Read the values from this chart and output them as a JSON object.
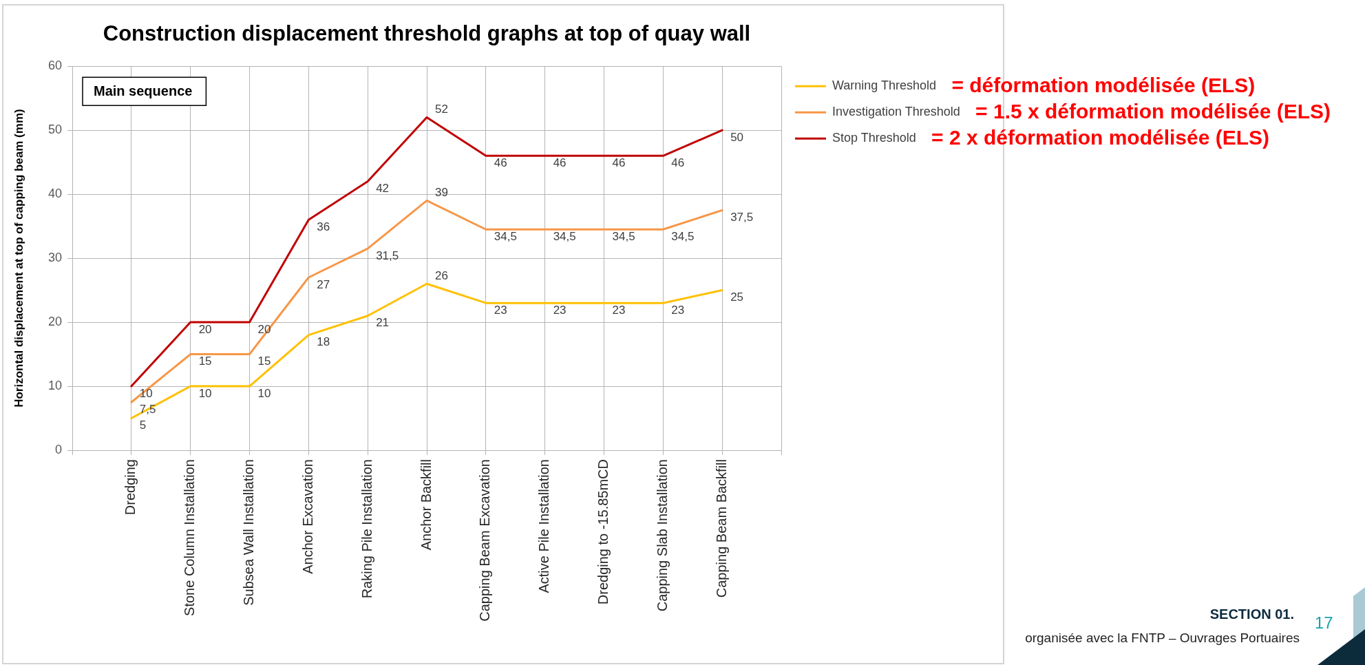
{
  "chart_data": {
    "type": "line",
    "title": "Construction displacement threshold graphs at top of quay wall",
    "ylabel": "Horizontal displacement at top of capping beam (mm)",
    "categories": [
      "Dredging",
      "Stone Column Installation",
      "Subsea Wall Installation",
      "Anchor Excavation",
      "Raking Pile Installation",
      "Anchor Backfill",
      "Capping Beam Excavation",
      "Active Pile Installation",
      "Dredging to -15.85mCD",
      "Capping Slab Installation",
      "Capping Beam Backfill"
    ],
    "series": [
      {
        "name": "Warning Threshold",
        "color": "#ffc000",
        "values": [
          5,
          10,
          10,
          18,
          21,
          26,
          23,
          23,
          23,
          23,
          25
        ],
        "value_labels": [
          "5",
          "10",
          "10",
          "18",
          "21",
          "26",
          "23",
          "23",
          "23",
          "23",
          "25"
        ]
      },
      {
        "name": "Investigation Threshold",
        "color": "#f79646",
        "values": [
          7.5,
          15,
          15,
          27,
          31.5,
          39,
          34.5,
          34.5,
          34.5,
          34.5,
          37.5
        ],
        "value_labels": [
          "7,5",
          "15",
          "15",
          "27",
          "31,5",
          "39",
          "34,5",
          "34,5",
          "34,5",
          "34,5",
          "37,5"
        ]
      },
      {
        "name": "Stop Threshold",
        "color": "#c00000",
        "values": [
          10,
          20,
          20,
          36,
          42,
          52,
          46,
          46,
          46,
          46,
          50
        ],
        "value_labels": [
          "10",
          "20",
          "20",
          "36",
          "42",
          "52",
          "46",
          "46",
          "46",
          "46",
          "50"
        ]
      }
    ],
    "ylim": [
      0,
      60
    ],
    "yticks": [
      0,
      10,
      20,
      30,
      40,
      50,
      60
    ],
    "grid": true,
    "legend": "top right",
    "marker": "none",
    "annotations": [
      "Main sequence",
      "= déformation modélisée (ELS)",
      "= 1.5 x déformation modélisée (ELS)",
      "= 2 x déformation modélisée (ELS)",
      "SECTION 01.",
      "17",
      "organisée avec la FNTP – Ouvrages Portuaires"
    ]
  }
}
